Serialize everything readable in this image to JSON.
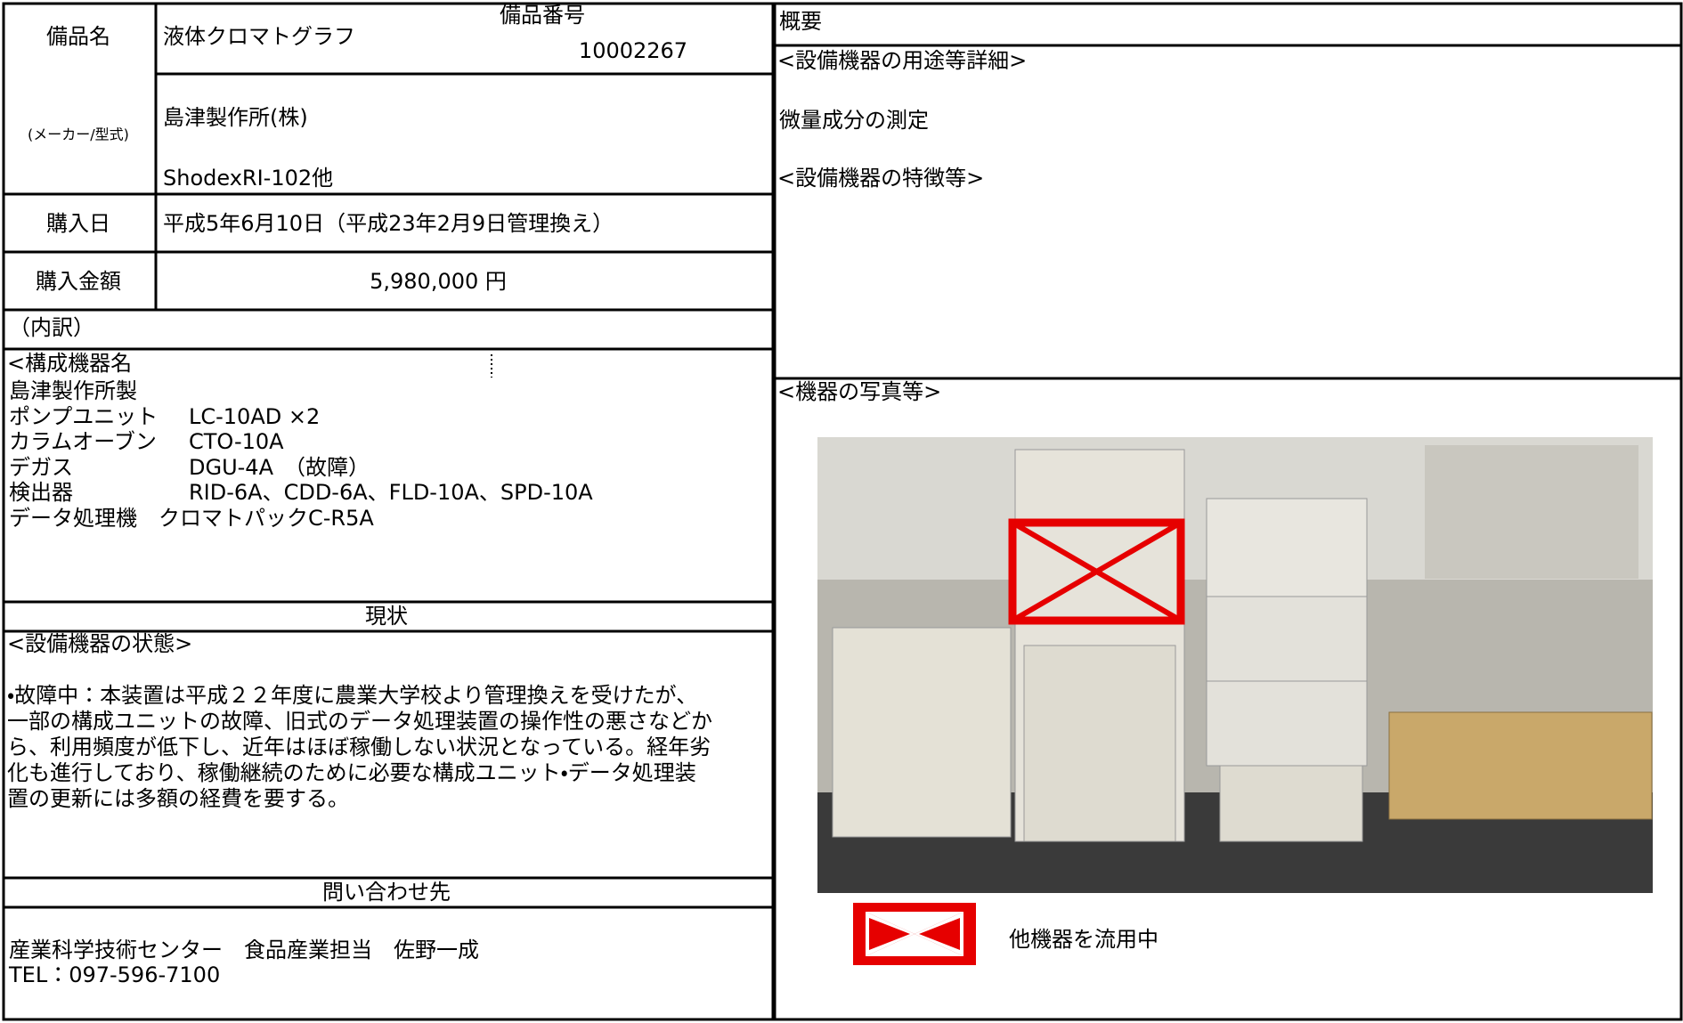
{
  "equipment": {
    "name_label": "備品名",
    "name": "液体クロマトグラフ",
    "number_label": "備品番号",
    "number": "10002267",
    "maker_label": "(メーカー/型式)",
    "maker": "島津製作所(株)",
    "model": "ShodexRI-102他",
    "purchase_date_label": "購入日",
    "purchase_date": "平成5年6月10日（平成23年2月9日管理換え）",
    "price_label": "購入金額",
    "price": "5,980,000 円",
    "breakdown_label": "（内訳）",
    "components_heading": "<構成機器名",
    "components_maker": "島津製作所製",
    "components": [
      {
        "name": "ポンプユニット",
        "model": "LC-10AD ×2"
      },
      {
        "name": "カラムオーブン",
        "model": "CTO-10A"
      },
      {
        "name": "デガス",
        "model": "DGU-4A　（故障）"
      },
      {
        "name": "検出器",
        "model": "RID-6A、CDD-6A、FLD-10A、SPD-10A"
      }
    ],
    "data_processor": "データ処理機　クロマトパックC-R5A",
    "status_label": "現状",
    "status_heading": "<設備機器の状態>",
    "status_lines": [
      "・故障中：本装置は平成２２年度に農業大学校より管理換えを受けたが、",
      "一部の構成ユニットの故障、旧式のデータ処理装置の操作性の悪さなどか",
      "ら、利用頻度が低下し、近年はほぼ稼働しない状況となっている。経年劣",
      "化も進行しており、稼働継続のために必要な構成ユニット・データ処理装",
      "置の更新には多額の経費を要する。"
    ],
    "contact_label": "問い合わせ先",
    "contact_name": "産業科学技術センター　食品産業担当　佐野一成",
    "contact_tel": "TEL：097-596-7100"
  },
  "overview": {
    "label": "概要",
    "use_heading": "<設備機器の用途等詳細>",
    "use": "微量成分の測定",
    "features_heading": "<設備機器の特徴等>",
    "photo_heading": "<機器の写真等>",
    "legend": "他機器を流用中"
  }
}
